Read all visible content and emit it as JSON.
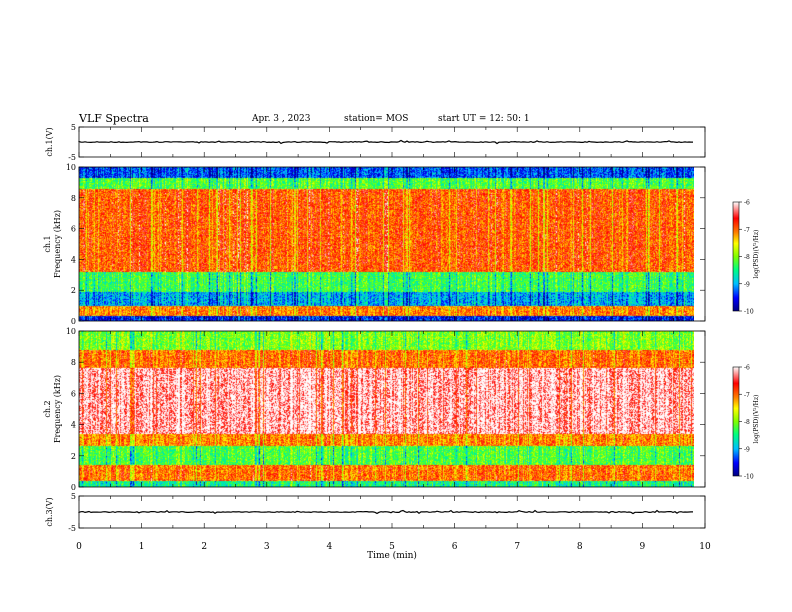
{
  "header": {
    "title": "VLF Spectra",
    "date": "Apr. 3 , 2023",
    "station": "station= MOS",
    "start": "start UT = 12: 50: 1"
  },
  "colors": {
    "colormap": [
      "#000080",
      "#0000ff",
      "#00bfff",
      "#00ff80",
      "#80ff00",
      "#ffff00",
      "#ff8000",
      "#ff0000",
      "#ffffff"
    ]
  },
  "chart_data": [
    {
      "type": "line",
      "panel": "ch1-voltage",
      "ylabel": "ch.1(V)",
      "ylim": [
        -5,
        5
      ],
      "yticks": [
        "5",
        "-5"
      ],
      "xlim": [
        0,
        10
      ],
      "series": [
        {
          "values_const": 0.0
        }
      ]
    },
    {
      "type": "heatmap",
      "panel": "ch1-spectrogram",
      "ylabel": "ch.1\nFrequency (kHz)",
      "ylim": [
        0,
        10
      ],
      "yticks": [
        "0",
        "2",
        "4",
        "6",
        "8",
        "10"
      ],
      "xlim": [
        0,
        10
      ],
      "colorbar": {
        "label": "log(PSD)(V²/Hz)",
        "range": [
          -10,
          -6
        ],
        "ticks": [
          "-6",
          "-7",
          "-8",
          "-9",
          "-10"
        ]
      },
      "bands_kHz": [
        {
          "from": 0.0,
          "to": 0.3,
          "level": -9.5
        },
        {
          "from": 0.3,
          "to": 1.0,
          "level": -7.0
        },
        {
          "from": 1.0,
          "to": 1.9,
          "level": -9.0
        },
        {
          "from": 1.9,
          "to": 3.2,
          "level": -8.3
        },
        {
          "from": 3.2,
          "to": 8.6,
          "level": -6.8
        },
        {
          "from": 8.6,
          "to": 9.3,
          "level": -8.2
        },
        {
          "from": 9.3,
          "to": 10.0,
          "level": -9.3
        }
      ]
    },
    {
      "type": "heatmap",
      "panel": "ch2-spectrogram",
      "ylabel": "ch.2\nFrequency (kHz)",
      "ylim": [
        0,
        10
      ],
      "yticks": [
        "0",
        "2",
        "4",
        "6",
        "8",
        "10"
      ],
      "xlim": [
        0,
        10
      ],
      "colorbar": {
        "label": "log(PSD)(V²/Hz)",
        "range": [
          -10,
          -6
        ],
        "ticks": [
          "-6",
          "-7",
          "-8",
          "-9",
          "-10"
        ]
      },
      "bands_kHz": [
        {
          "from": 0.0,
          "to": 0.4,
          "level": -8.5
        },
        {
          "from": 0.4,
          "to": 1.4,
          "level": -6.9
        },
        {
          "from": 1.4,
          "to": 2.6,
          "level": -8.2
        },
        {
          "from": 2.6,
          "to": 3.4,
          "level": -7.0
        },
        {
          "from": 3.4,
          "to": 7.6,
          "level": -6.1
        },
        {
          "from": 7.6,
          "to": 8.8,
          "level": -6.9
        },
        {
          "from": 8.8,
          "to": 10.0,
          "level": -8.0
        }
      ]
    },
    {
      "type": "line",
      "panel": "ch3-voltage",
      "ylabel": "ch.3(V)",
      "ylim": [
        -5,
        5
      ],
      "yticks": [
        "5",
        "-5"
      ],
      "xlim": [
        0,
        10
      ],
      "series": [
        {
          "values_const": 0.0
        }
      ]
    }
  ],
  "xaxis": {
    "label": "Time (min)",
    "ticks": [
      "0",
      "1",
      "2",
      "3",
      "4",
      "5",
      "6",
      "7",
      "8",
      "9",
      "10"
    ],
    "data_end": 9.82
  }
}
